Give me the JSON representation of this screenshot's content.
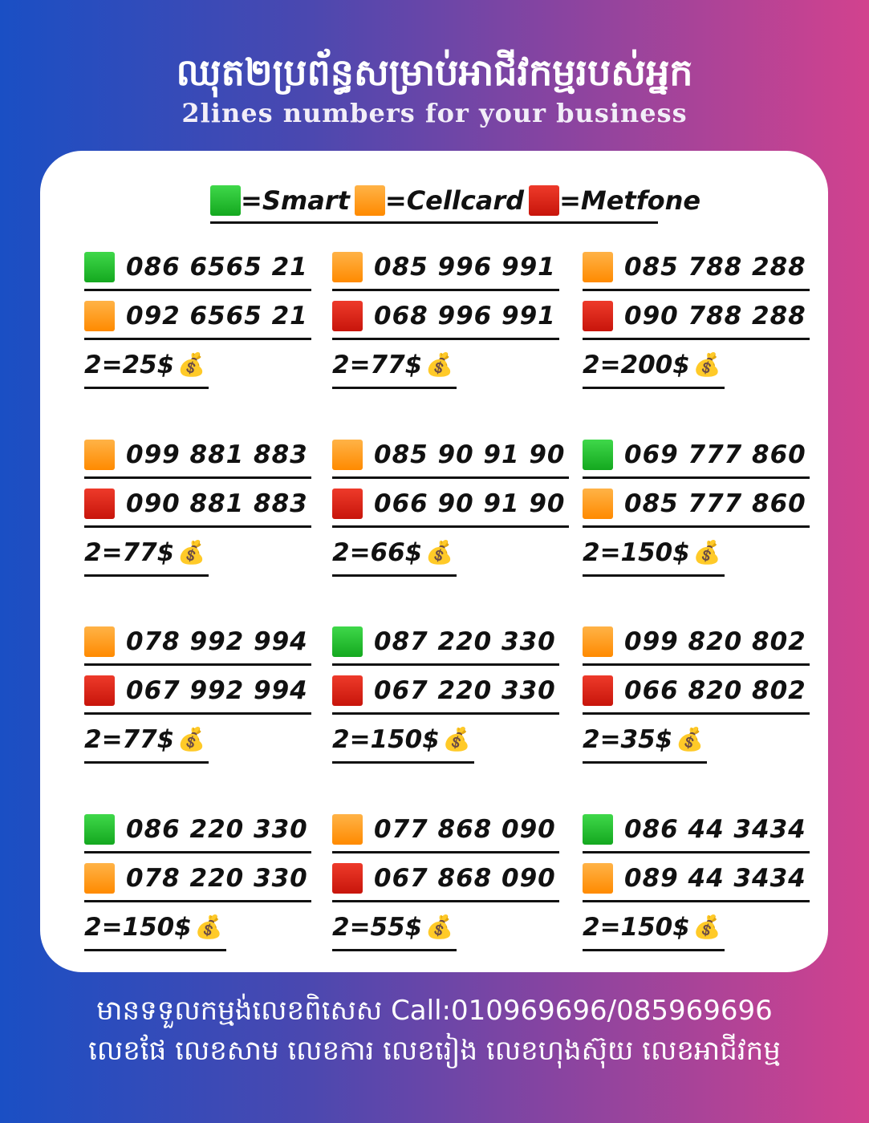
{
  "header": {
    "title_km": "ឈុត២ប្រព័ន្ធសម្រាប់អាជីវកម្មរបស់អ្នក",
    "subtitle": "2lines numbers for your business"
  },
  "legend": [
    {
      "operator": "Smart",
      "label": "=Smart",
      "color": "#1fbf2a"
    },
    {
      "operator": "Cellcard",
      "label": "=Cellcard",
      "color": "#ff9a1a"
    },
    {
      "operator": "Metfone",
      "label": "=Metfone",
      "color": "#d8200f"
    }
  ],
  "price_icon": "money-bag-icon",
  "groups": [
    {
      "lines": [
        {
          "op": "green",
          "number": "086 6565 21"
        },
        {
          "op": "orange",
          "number": "092 6565 21"
        }
      ],
      "price": "2=25$"
    },
    {
      "lines": [
        {
          "op": "orange",
          "number": "085 996 991"
        },
        {
          "op": "red",
          "number": "068 996 991"
        }
      ],
      "price": "2=77$"
    },
    {
      "lines": [
        {
          "op": "orange",
          "number": "085 788 288"
        },
        {
          "op": "red",
          "number": "090 788 288"
        }
      ],
      "price": "2=200$"
    },
    {
      "lines": [
        {
          "op": "orange",
          "number": "099 881 883"
        },
        {
          "op": "red",
          "number": "090 881 883"
        }
      ],
      "price": "2=77$"
    },
    {
      "lines": [
        {
          "op": "orange",
          "number": "085 90 91 90"
        },
        {
          "op": "red",
          "number": "066 90 91 90"
        }
      ],
      "price": "2=66$"
    },
    {
      "lines": [
        {
          "op": "green",
          "number": "069 777 860"
        },
        {
          "op": "orange",
          "number": "085 777 860"
        }
      ],
      "price": "2=150$"
    },
    {
      "lines": [
        {
          "op": "orange",
          "number": "078 992 994"
        },
        {
          "op": "red",
          "number": "067 992 994"
        }
      ],
      "price": "2=77$"
    },
    {
      "lines": [
        {
          "op": "green",
          "number": "087 220 330"
        },
        {
          "op": "red",
          "number": "067 220 330"
        }
      ],
      "price": "2=150$"
    },
    {
      "lines": [
        {
          "op": "orange",
          "number": "099 820 802"
        },
        {
          "op": "red",
          "number": "066 820 802"
        }
      ],
      "price": "2=35$"
    },
    {
      "lines": [
        {
          "op": "green",
          "number": "086 220 330"
        },
        {
          "op": "orange",
          "number": "078 220 330"
        }
      ],
      "price": "2=150$"
    },
    {
      "lines": [
        {
          "op": "orange",
          "number": "077 868 090"
        },
        {
          "op": "red",
          "number": "067 868 090"
        }
      ],
      "price": "2=55$"
    },
    {
      "lines": [
        {
          "op": "green",
          "number": "086 44 3434"
        },
        {
          "op": "orange",
          "number": "089 44 3434"
        }
      ],
      "price": "2=150$"
    }
  ],
  "footer": {
    "line1": "មានទទួលកម្មង់លេខពិសេស Call:010969696/085969696",
    "line2": "លេខផែ លេខសាម លេខការ លេខរៀង លេខហុងស៊ុយ លេខអាជីវកម្ម"
  }
}
